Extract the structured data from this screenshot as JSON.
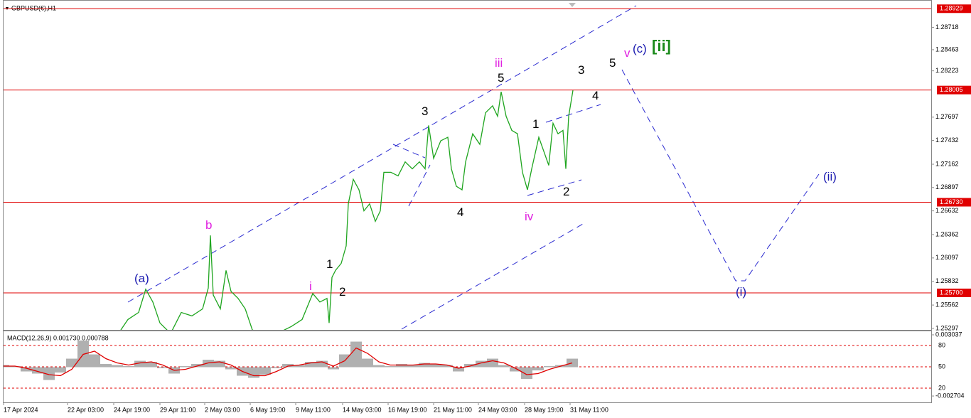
{
  "chart_data": [
    {
      "type": "line",
      "title": "GBPUSD(€),H1",
      "color": "#1fa51f",
      "x": [
        165,
        175,
        190,
        200,
        210,
        220,
        235,
        250,
        265,
        280,
        288,
        291,
        295,
        305,
        313,
        320,
        330,
        340,
        350,
        375,
        405,
        420,
        435,
        445,
        455,
        458,
        462,
        467,
        475,
        482,
        485,
        492,
        500,
        507,
        515,
        523,
        530,
        535,
        545,
        555,
        565,
        575,
        585,
        593,
        598,
        605,
        615,
        625,
        630,
        637,
        645,
        650,
        660,
        670,
        678,
        688,
        695,
        700,
        707,
        715,
        723,
        730,
        737,
        743,
        753,
        760,
        767,
        773,
        780,
        787,
        791,
        795,
        801
      ],
      "values": [
        1.25279,
        1.25398,
        1.25478,
        1.25741,
        1.25597,
        1.25358,
        1.25239,
        1.25478,
        1.25438,
        1.25518,
        1.25756,
        1.26353,
        1.25677,
        1.25518,
        1.25955,
        1.25717,
        1.25637,
        1.25518,
        1.25279,
        1.25199,
        1.25319,
        1.25398,
        1.25693,
        1.25597,
        1.25637,
        1.25358,
        1.25876,
        1.25955,
        1.26035,
        1.26234,
        1.26712,
        1.2699,
        1.26871,
        1.26632,
        1.26712,
        1.26513,
        1.26632,
        1.2707,
        1.2707,
        1.2703,
        1.27189,
        1.2711,
        1.27189,
        1.2711,
        1.27603,
        1.27229,
        1.27428,
        1.27468,
        1.2711,
        1.26911,
        1.26871,
        1.27189,
        1.27508,
        1.27388,
        1.27746,
        1.27826,
        1.27707,
        1.27985,
        1.27707,
        1.27547,
        1.27508,
        1.2707,
        1.26871,
        1.2711,
        1.27468,
        1.27309,
        1.27149,
        1.27627,
        1.27508,
        1.27547,
        1.2711,
        1.27707,
        1.28001
      ],
      "xlim": [
        0,
        1305
      ],
      "xticks": [
        {
          "value": 0,
          "label": "17 Apr 2024"
        },
        {
          "value": 90,
          "label": "22 Apr 03:00"
        },
        {
          "value": 155,
          "label": "24 Apr 19:00"
        },
        {
          "value": 220,
          "label": "29 Apr 11:00"
        },
        {
          "value": 283,
          "label": "2 May 03:00"
        },
        {
          "value": 347,
          "label": "6 May 19:00"
        },
        {
          "value": 411,
          "label": "9 May 11:00"
        },
        {
          "value": 477,
          "label": "14 May 03:00"
        },
        {
          "value": 541,
          "label": "16 May 19:00"
        },
        {
          "value": 605,
          "label": "21 May 11:00"
        },
        {
          "value": 668,
          "label": "24 May 03:00"
        },
        {
          "value": 733,
          "label": "28 May 19:00"
        },
        {
          "value": 797,
          "label": "31 May 11:00"
        }
      ],
      "ylim": [
        1.2528,
        1.2902
      ],
      "yticks": [
        1.28718,
        1.28463,
        1.28223,
        1.27697,
        1.27432,
        1.27162,
        1.26897,
        1.26632,
        1.26362,
        1.26097,
        1.25832,
        1.25562,
        1.25297
      ],
      "levels": [
        1.28929,
        1.28005,
        {
          "value": 1.2673,
          "label": "1.26730"
        },
        {
          "value": 1.257,
          "label": "1.25700"
        }
      ],
      "level_color": "#e00000",
      "annotations": [
        "(a)",
        "b",
        "i",
        "1",
        "2",
        "3",
        "4",
        "iii",
        "5",
        "iv",
        "1",
        "2",
        "3",
        "4",
        "5",
        "v",
        "(c)",
        "[ii]",
        "(ii)",
        "(i)"
      ]
    },
    {
      "type": "macd",
      "title": "MACD(12,26,9) 0.001730 0.000788",
      "color": "#b0b0b0",
      "signal_color": "#e00000",
      "x": [
        0,
        16,
        32,
        48,
        64,
        80,
        96,
        112,
        128,
        144,
        160,
        176,
        192,
        208,
        224,
        240,
        256,
        272,
        288,
        304,
        320,
        336,
        352,
        368,
        384,
        400,
        416,
        432,
        448,
        464,
        480,
        496,
        512,
        528,
        544,
        560,
        576,
        592,
        608,
        624,
        640,
        656,
        672,
        688,
        704,
        720,
        736,
        752,
        768,
        784,
        800
      ],
      "values": [
        0.0002,
        0.0001,
        -0.0004,
        -0.0006,
        -0.0012,
        -0.0005,
        0.0008,
        0.0025,
        0.0012,
        0.0003,
        0.0002,
        0.0001,
        0.0006,
        0.0005,
        -0.0001,
        -0.0006,
        0.0001,
        0.0003,
        0.0007,
        0.0006,
        -0.0002,
        -0.0008,
        -0.001,
        -0.0007,
        -0.0001,
        0.0003,
        0.0002,
        0.0005,
        0.0006,
        -0.0002,
        0.0012,
        0.0024,
        0.0008,
        0.0002,
        0.0001,
        0.0003,
        0.0002,
        0.0004,
        0.0003,
        0.0002,
        -0.0004,
        0.0003,
        0.0006,
        0.0008,
        0.0002,
        -0.0004,
        -0.0011,
        -0.0003,
        0.0001,
        0.0002,
        0.0008
      ],
      "signal_values": [
        0.0001,
        0.0001,
        -0.0001,
        -0.0004,
        -0.0007,
        -0.0008,
        -0.0002,
        0.0012,
        0.0015,
        0.0008,
        0.0004,
        0.0002,
        0.0004,
        0.0005,
        0.0002,
        -0.0003,
        -0.0002,
        0.0001,
        0.0004,
        0.0005,
        0.0002,
        -0.0004,
        -0.0008,
        -0.0008,
        -0.0004,
        0.0001,
        0.0002,
        0.0004,
        0.0005,
        0.0001,
        0.0006,
        0.0018,
        0.0013,
        0.0005,
        0.0002,
        0.0002,
        0.0002,
        0.0003,
        0.0003,
        0.0002,
        -0.0001,
        0.0001,
        0.0004,
        0.0006,
        0.0004,
        -0.0001,
        -0.0007,
        -0.0006,
        -0.0002,
        0.0001,
        0.0004
      ],
      "ylim": [
        -0.0033,
        0.00337
      ],
      "yticks": [
        0.003037,
        -0.002704
      ],
      "y2lim": [
        0,
        100
      ],
      "y2ticks": [
        80,
        50,
        20
      ]
    }
  ]
}
